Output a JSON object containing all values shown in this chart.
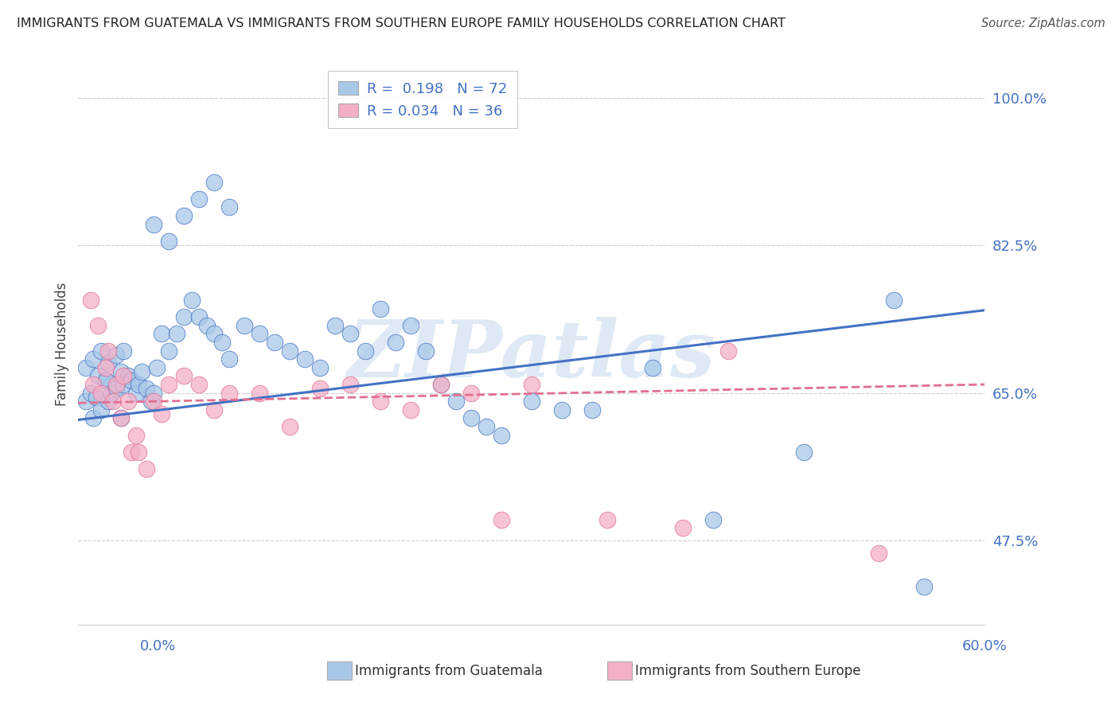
{
  "title": "IMMIGRANTS FROM GUATEMALA VS IMMIGRANTS FROM SOUTHERN EUROPE FAMILY HOUSEHOLDS CORRELATION CHART",
  "source": "Source: ZipAtlas.com",
  "ylabel": "Family Households",
  "ytick_vals": [
    0.475,
    0.65,
    0.825,
    1.0
  ],
  "ytick_labels": [
    "47.5%",
    "65.0%",
    "82.5%",
    "100.0%"
  ],
  "xlim": [
    0.0,
    0.6
  ],
  "ylim": [
    0.375,
    1.04
  ],
  "legend_line1": "R =  0.198   N = 72",
  "legend_line2": "R = 0.034   N = 36",
  "color_blue": "#a8c8e8",
  "color_pink": "#f4b0c8",
  "line_blue": "#4472c4",
  "line_pink": "#e07090",
  "label1": "Immigrants from Guatemala",
  "label2": "Immigrants from Southern Europe",
  "blue_line_y0": 0.618,
  "blue_line_y1": 0.748,
  "pink_line_y0": 0.638,
  "pink_line_y1": 0.66,
  "watermark": "ZIPatlas",
  "bg": "#ffffff",
  "blue_x": [
    0.005,
    0.01,
    0.013,
    0.015,
    0.018,
    0.02,
    0.022,
    0.025,
    0.028,
    0.03,
    0.005,
    0.008,
    0.01,
    0.012,
    0.015,
    0.018,
    0.02,
    0.022,
    0.025,
    0.028,
    0.03,
    0.033,
    0.035,
    0.038,
    0.04,
    0.042,
    0.045,
    0.048,
    0.05,
    0.052,
    0.055,
    0.06,
    0.065,
    0.07,
    0.075,
    0.08,
    0.085,
    0.09,
    0.095,
    0.1,
    0.11,
    0.12,
    0.13,
    0.14,
    0.15,
    0.16,
    0.17,
    0.18,
    0.19,
    0.2,
    0.21,
    0.22,
    0.23,
    0.24,
    0.25,
    0.26,
    0.27,
    0.28,
    0.05,
    0.06,
    0.07,
    0.08,
    0.09,
    0.1,
    0.3,
    0.32,
    0.34,
    0.38,
    0.42,
    0.48,
    0.54,
    0.56
  ],
  "blue_y": [
    0.68,
    0.69,
    0.67,
    0.7,
    0.665,
    0.685,
    0.66,
    0.695,
    0.675,
    0.7,
    0.64,
    0.65,
    0.62,
    0.645,
    0.63,
    0.665,
    0.64,
    0.65,
    0.655,
    0.62,
    0.66,
    0.67,
    0.665,
    0.65,
    0.66,
    0.675,
    0.655,
    0.64,
    0.65,
    0.68,
    0.72,
    0.7,
    0.72,
    0.74,
    0.76,
    0.74,
    0.73,
    0.72,
    0.71,
    0.69,
    0.73,
    0.72,
    0.71,
    0.7,
    0.69,
    0.68,
    0.73,
    0.72,
    0.7,
    0.75,
    0.71,
    0.73,
    0.7,
    0.66,
    0.64,
    0.62,
    0.61,
    0.6,
    0.85,
    0.83,
    0.86,
    0.88,
    0.9,
    0.87,
    0.64,
    0.63,
    0.63,
    0.68,
    0.5,
    0.58,
    0.76,
    0.42
  ],
  "pink_x": [
    0.008,
    0.01,
    0.013,
    0.015,
    0.018,
    0.02,
    0.023,
    0.025,
    0.028,
    0.03,
    0.033,
    0.035,
    0.038,
    0.04,
    0.045,
    0.05,
    0.055,
    0.06,
    0.07,
    0.08,
    0.09,
    0.1,
    0.12,
    0.14,
    0.16,
    0.18,
    0.2,
    0.22,
    0.24,
    0.26,
    0.28,
    0.3,
    0.35,
    0.4,
    0.43,
    0.53
  ],
  "pink_y": [
    0.76,
    0.66,
    0.73,
    0.65,
    0.68,
    0.7,
    0.64,
    0.66,
    0.62,
    0.67,
    0.64,
    0.58,
    0.6,
    0.58,
    0.56,
    0.64,
    0.625,
    0.66,
    0.67,
    0.66,
    0.63,
    0.65,
    0.65,
    0.61,
    0.655,
    0.66,
    0.64,
    0.63,
    0.66,
    0.65,
    0.5,
    0.66,
    0.5,
    0.49,
    0.7,
    0.46
  ]
}
